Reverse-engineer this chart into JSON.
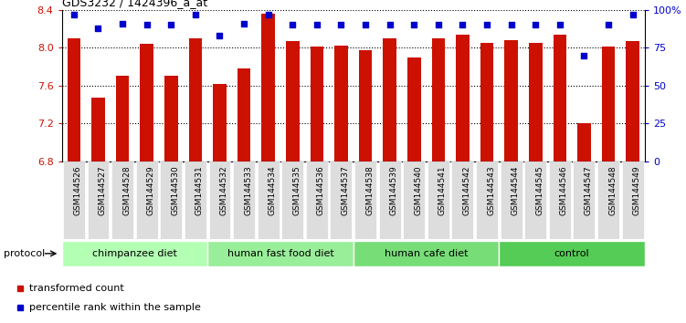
{
  "title": "GDS3232 / 1424396_a_at",
  "samples": [
    "GSM144526",
    "GSM144527",
    "GSM144528",
    "GSM144529",
    "GSM144530",
    "GSM144531",
    "GSM144532",
    "GSM144533",
    "GSM144534",
    "GSM144535",
    "GSM144536",
    "GSM144537",
    "GSM144538",
    "GSM144539",
    "GSM144540",
    "GSM144541",
    "GSM144542",
    "GSM144543",
    "GSM144544",
    "GSM144545",
    "GSM144546",
    "GSM144547",
    "GSM144548",
    "GSM144549"
  ],
  "bar_values": [
    8.1,
    7.47,
    7.7,
    8.04,
    7.7,
    8.1,
    7.62,
    7.78,
    8.36,
    8.07,
    8.01,
    8.02,
    7.97,
    8.1,
    7.9,
    8.1,
    8.14,
    8.05,
    8.08,
    8.05,
    8.14,
    7.2,
    8.01,
    8.07
  ],
  "percentile_values": [
    97,
    88,
    91,
    90,
    90,
    97,
    83,
    91,
    97,
    90,
    90,
    90,
    90,
    90,
    90,
    90,
    90,
    90,
    90,
    90,
    90,
    70,
    90,
    97
  ],
  "groups": [
    {
      "label": "chimpanzee diet",
      "start": 0,
      "end": 5,
      "color": "#b3ffb3"
    },
    {
      "label": "human fast food diet",
      "start": 6,
      "end": 11,
      "color": "#99ee99"
    },
    {
      "label": "human cafe diet",
      "start": 12,
      "end": 17,
      "color": "#77dd77"
    },
    {
      "label": "control",
      "start": 18,
      "end": 23,
      "color": "#55cc55"
    }
  ],
  "ylim_left": [
    6.8,
    8.4
  ],
  "yticks_left": [
    6.8,
    7.2,
    7.6,
    8.0,
    8.4
  ],
  "ylim_right": [
    0,
    100
  ],
  "yticks_right": [
    0,
    25,
    50,
    75,
    100
  ],
  "ytick_labels_right": [
    "0",
    "25",
    "50",
    "75",
    "100%"
  ],
  "bar_color": "#cc1100",
  "dot_color": "#0000cc",
  "left_tick_color": "#cc1100",
  "right_tick_color": "#0000cc",
  "legend_items": [
    {
      "label": "transformed count",
      "color": "#cc1100"
    },
    {
      "label": "percentile rank within the sample",
      "color": "#0000cc"
    }
  ],
  "protocol_label": "protocol",
  "background_color": "#ffffff",
  "bar_bottom": 6.8
}
